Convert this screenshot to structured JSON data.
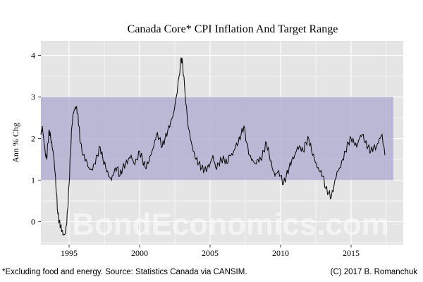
{
  "chart_data": {
    "type": "line",
    "title": "Canada Core* CPI Inflation And Target Range",
    "ylabel": "Ann % Chg",
    "xlabel": "",
    "xlim": [
      1993.0,
      2018.7
    ],
    "ylim": [
      -0.55,
      4.35
    ],
    "x_ticks": [
      1995,
      2000,
      2005,
      2010,
      2015
    ],
    "y_ticks": [
      0,
      1,
      2,
      3,
      4
    ],
    "grid": true,
    "target_range": {
      "low": 1,
      "high": 3,
      "x_start": 1993.0,
      "x_end": 2018.0
    },
    "series": [
      {
        "x": [
          1993.0,
          1993.1,
          1993.2,
          1993.3,
          1993.4,
          1993.5,
          1993.6,
          1993.7,
          1993.8,
          1993.9,
          1994.0,
          1994.1,
          1994.2,
          1994.3,
          1994.4,
          1994.5,
          1994.6,
          1994.7,
          1994.8,
          1994.9,
          1995.0,
          1995.1,
          1995.2,
          1995.3,
          1995.4,
          1995.5,
          1995.6,
          1995.7,
          1995.8,
          1996.0,
          1996.2,
          1996.4,
          1996.6,
          1996.8,
          1997.0,
          1997.2,
          1997.4,
          1997.6,
          1997.8,
          1998.0,
          1998.2,
          1998.4,
          1998.6,
          1998.8,
          1999.0,
          1999.2,
          1999.4,
          1999.6,
          1999.8,
          2000.0,
          2000.2,
          2000.4,
          2000.6,
          2000.8,
          2001.0,
          2001.2,
          2001.4,
          2001.6,
          2001.8,
          2002.0,
          2002.2,
          2002.4,
          2002.6,
          2002.8,
          2002.95,
          2003.05,
          2003.2,
          2003.4,
          2003.6,
          2003.8,
          2004.0,
          2004.2,
          2004.4,
          2004.6,
          2004.8,
          2005.0,
          2005.2,
          2005.4,
          2005.6,
          2005.8,
          2006.0,
          2006.2,
          2006.4,
          2006.6,
          2006.8,
          2007.0,
          2007.2,
          2007.4,
          2007.6,
          2007.8,
          2008.0,
          2008.2,
          2008.4,
          2008.6,
          2008.8,
          2009.0,
          2009.2,
          2009.4,
          2009.6,
          2009.8,
          2010.0,
          2010.2,
          2010.4,
          2010.6,
          2010.8,
          2011.0,
          2011.2,
          2011.4,
          2011.6,
          2011.8,
          2012.0,
          2012.2,
          2012.4,
          2012.6,
          2012.8,
          2013.0,
          2013.2,
          2013.4,
          2013.6,
          2013.8,
          2014.0,
          2014.2,
          2014.4,
          2014.6,
          2014.8,
          2015.0,
          2015.2,
          2015.4,
          2015.6,
          2015.8,
          2016.0,
          2016.2,
          2016.4,
          2016.6,
          2016.8,
          2017.0,
          2017.2,
          2017.4
        ],
        "values": [
          2.1,
          2.3,
          2.0,
          1.7,
          1.5,
          1.9,
          2.2,
          2.0,
          1.8,
          1.6,
          1.2,
          0.7,
          0.2,
          0.0,
          -0.1,
          -0.2,
          -0.3,
          -0.3,
          -0.1,
          0.3,
          0.9,
          1.7,
          2.3,
          2.6,
          2.7,
          2.75,
          2.6,
          2.3,
          1.9,
          1.6,
          1.5,
          1.3,
          1.25,
          1.4,
          1.6,
          1.8,
          1.5,
          1.3,
          1.1,
          1.0,
          1.2,
          1.3,
          1.1,
          1.3,
          1.4,
          1.5,
          1.6,
          1.4,
          1.5,
          1.7,
          1.5,
          1.3,
          1.4,
          1.6,
          1.8,
          2.1,
          2.0,
          1.8,
          2.0,
          2.2,
          2.4,
          2.6,
          3.0,
          3.5,
          3.95,
          3.8,
          3.2,
          2.4,
          2.0,
          1.7,
          1.5,
          1.4,
          1.3,
          1.25,
          1.3,
          1.4,
          1.6,
          1.3,
          1.4,
          1.5,
          1.5,
          1.4,
          1.6,
          1.6,
          1.8,
          1.9,
          2.1,
          2.3,
          1.9,
          1.6,
          1.5,
          1.4,
          1.5,
          1.5,
          1.7,
          1.9,
          1.6,
          1.3,
          1.1,
          1.2,
          1.1,
          0.9,
          1.1,
          1.3,
          1.5,
          1.6,
          1.8,
          1.8,
          1.7,
          1.9,
          2.0,
          1.7,
          1.5,
          1.3,
          1.2,
          1.1,
          0.8,
          0.7,
          0.6,
          0.9,
          1.2,
          1.3,
          1.5,
          1.7,
          1.9,
          2.0,
          1.9,
          1.8,
          2.0,
          2.1,
          1.9,
          1.8,
          1.7,
          1.8,
          1.8,
          2.0,
          2.1,
          1.6
        ]
      }
    ]
  },
  "footer": {
    "note": "*Excluding food and energy. Source: Statistics Canada via CANSIM.",
    "copyright": "(C) 2017 B. Romanchuk"
  },
  "watermark": "BondEconomics.com",
  "colors": {
    "panel": "#e5e5e5",
    "band": "#b4b0d4",
    "grid": "#ffffff",
    "line": "#000000"
  }
}
